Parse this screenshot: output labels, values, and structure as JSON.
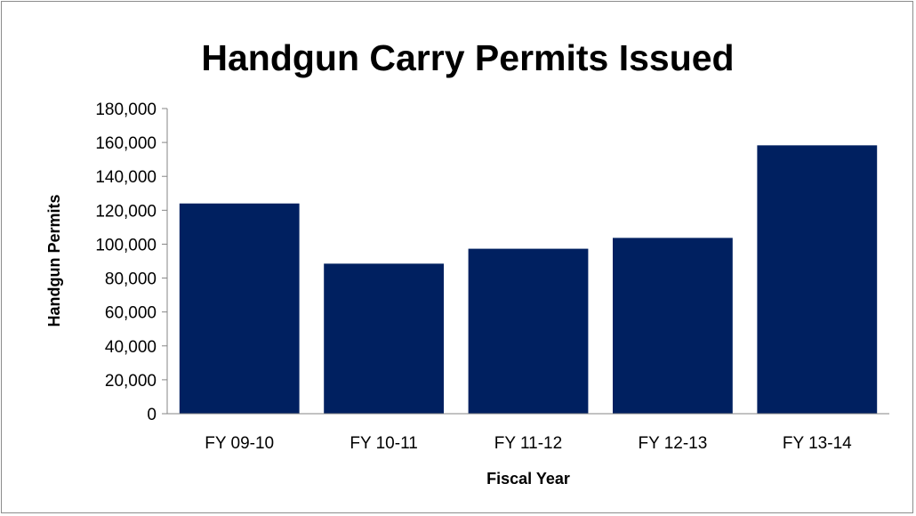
{
  "chart_data": {
    "type": "bar",
    "title": "Handgun Carry Permits Issued",
    "xlabel": "Fiscal Year",
    "ylabel": "Handgun Permits",
    "categories": [
      "FY 09-10",
      "FY 10-11",
      "FY 11-12",
      "FY 12-13",
      "FY 13-14"
    ],
    "values": [
      124000,
      88500,
      97300,
      103700,
      158300
    ],
    "ylim": [
      0,
      180000
    ],
    "yticks": [
      "0",
      "20,000",
      "40,000",
      "60,000",
      "80,000",
      "100,000",
      "120,000",
      "140,000",
      "160,000",
      "180,000"
    ],
    "bar_color": "#002060",
    "grid": false,
    "legend": "none"
  }
}
